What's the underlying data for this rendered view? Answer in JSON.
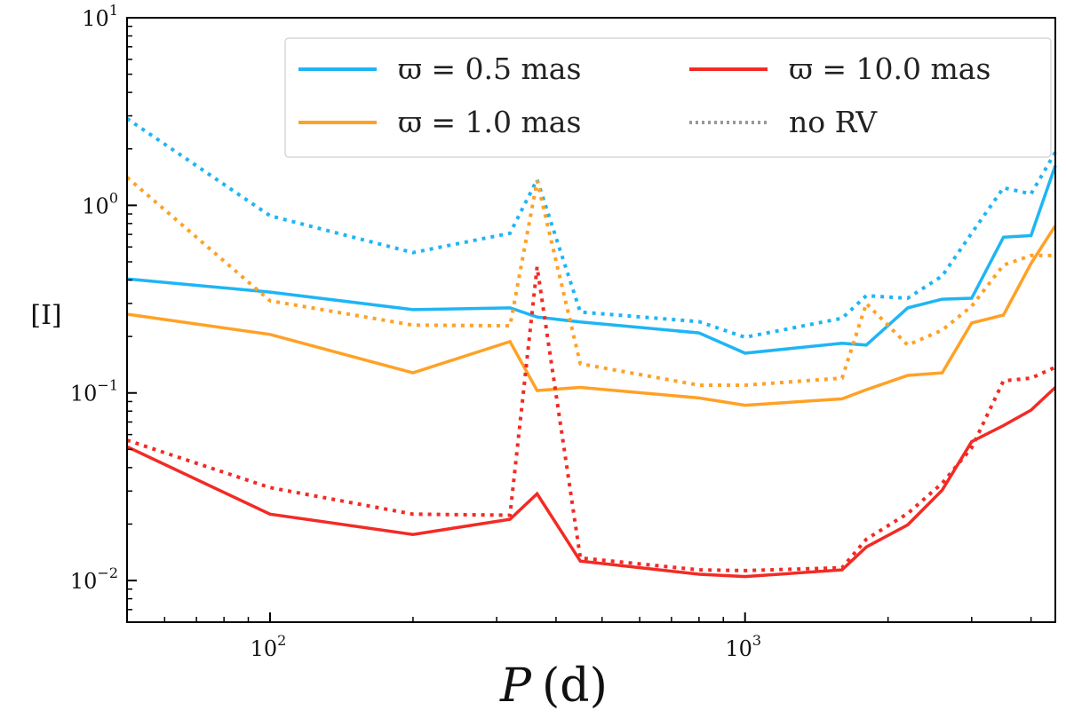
{
  "chart_data": {
    "type": "line",
    "title": "",
    "xlabel_var": "P",
    "xlabel_unit": "(d)",
    "ylabel": "[I]",
    "xscale": "log",
    "yscale": "log",
    "xlim": [
      50,
      4500
    ],
    "ylim": [
      0.006,
      10
    ],
    "x_ticks": [
      {
        "value": 100,
        "base": "10",
        "exp": "2"
      },
      {
        "value": 1000,
        "base": "10",
        "exp": "3"
      }
    ],
    "y_ticks": [
      {
        "value": 0.01,
        "base": "10",
        "exp": "−2"
      },
      {
        "value": 0.1,
        "base": "10",
        "exp": "−1"
      },
      {
        "value": 1,
        "base": "10",
        "exp": "0"
      },
      {
        "value": 10,
        "base": "10",
        "exp": "1"
      }
    ],
    "grid": false,
    "legend_position": "top-right",
    "x": [
      50,
      100,
      200,
      320,
      365,
      450,
      800,
      1000,
      1600,
      1800,
      2200,
      2600,
      3000,
      3500,
      4000,
      4500
    ],
    "series": [
      {
        "name": "ϖ = 0.5 mas",
        "color": "#1fb5f5",
        "style": "solid",
        "values": [
          0.405,
          0.345,
          0.278,
          0.284,
          0.254,
          0.239,
          0.209,
          0.163,
          0.184,
          0.18,
          0.284,
          0.316,
          0.32,
          0.676,
          0.69,
          1.63
        ]
      },
      {
        "name": "ϖ = 0.5 mas no RV",
        "color": "#1fb5f5",
        "style": "dotted",
        "values": [
          2.9,
          0.88,
          0.56,
          0.71,
          1.37,
          0.27,
          0.24,
          0.198,
          0.25,
          0.33,
          0.32,
          0.42,
          0.71,
          1.24,
          1.15,
          1.92
        ]
      },
      {
        "name": "ϖ = 1.0 mas",
        "color": "#ffa126",
        "style": "solid",
        "values": [
          0.263,
          0.205,
          0.128,
          0.188,
          0.103,
          0.107,
          0.094,
          0.086,
          0.093,
          0.104,
          0.124,
          0.128,
          0.236,
          0.26,
          0.49,
          0.78
        ]
      },
      {
        "name": "ϖ = 1.0 mas no RV",
        "color": "#ffa126",
        "style": "dotted",
        "values": [
          1.41,
          0.31,
          0.23,
          0.228,
          1.35,
          0.143,
          0.11,
          0.11,
          0.12,
          0.3,
          0.18,
          0.216,
          0.29,
          0.48,
          0.54,
          0.54
        ]
      },
      {
        "name": "ϖ = 10.0 mas",
        "color": "#f22b25",
        "style": "solid",
        "values": [
          0.0517,
          0.0226,
          0.0176,
          0.0212,
          0.029,
          0.0127,
          0.0108,
          0.0105,
          0.0114,
          0.0151,
          0.0198,
          0.0303,
          0.055,
          0.067,
          0.081,
          0.107
        ]
      },
      {
        "name": "ϖ = 10.0 mas no RV",
        "color": "#f22b25",
        "style": "dotted",
        "values": [
          0.056,
          0.0313,
          0.0226,
          0.0223,
          0.47,
          0.0132,
          0.0114,
          0.0113,
          0.0117,
          0.0166,
          0.0228,
          0.033,
          0.051,
          0.116,
          0.12,
          0.137
        ]
      }
    ],
    "legend": [
      {
        "label": "ϖ = 0.5 mas",
        "color": "#1fb5f5",
        "style": "solid"
      },
      {
        "label": "ϖ = 10.0 mas",
        "color": "#f22b25",
        "style": "solid"
      },
      {
        "label": "ϖ = 1.0 mas",
        "color": "#ffa126",
        "style": "solid"
      },
      {
        "label": "no RV",
        "color": "#999999",
        "style": "dotted"
      }
    ]
  }
}
